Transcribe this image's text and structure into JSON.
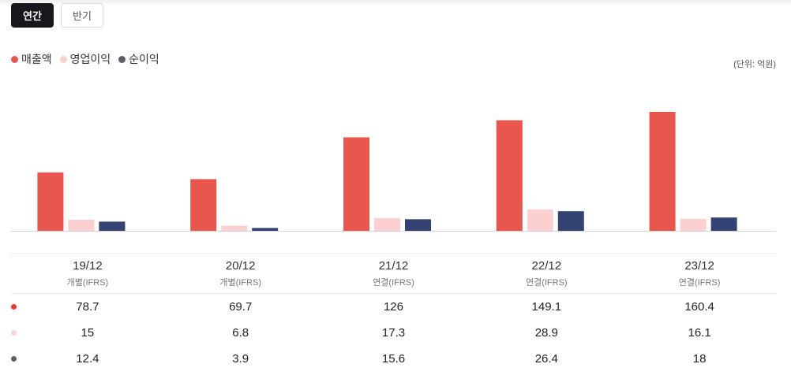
{
  "tabs": [
    {
      "label": "연간",
      "active": true
    },
    {
      "label": "반기",
      "active": false
    }
  ],
  "legend": [
    {
      "label": "매출액",
      "color": "#e8564d"
    },
    {
      "label": "영업이익",
      "color": "#fccfd1"
    },
    {
      "label": "순이익",
      "color": "#5f5f66"
    }
  ],
  "unit_label": "(단위: 억원)",
  "chart_data": {
    "type": "bar",
    "categories": [
      "19/12",
      "20/12",
      "21/12",
      "22/12",
      "23/12"
    ],
    "category_sublabels": [
      "개별(IFRS)",
      "개별(IFRS)",
      "연결(IFRS)",
      "연결(IFRS)",
      "연결(IFRS)"
    ],
    "series": [
      {
        "name": "매출액",
        "color": "#e8564d",
        "values": [
          78.7,
          69.7,
          126,
          149.1,
          160.4
        ],
        "labels": [
          "78.7",
          "69.7",
          "126",
          "149.1",
          "160.4"
        ]
      },
      {
        "name": "영업이익",
        "color": "#fccfd1",
        "values": [
          15,
          6.8,
          17.3,
          28.9,
          16.1
        ],
        "labels": [
          "15",
          "6.8",
          "17.3",
          "28.9",
          "16.1"
        ]
      },
      {
        "name": "순이익",
        "color": "#354374",
        "values": [
          12.4,
          3.9,
          15.6,
          26.4,
          18
        ],
        "labels": [
          "12.4",
          "3.9",
          "15.6",
          "26.4",
          "18"
        ]
      }
    ],
    "ylim": [
      0,
      160.4
    ],
    "grid": false
  },
  "row_markers": [
    "#e53c32",
    "#fcd3d5",
    "#5f5f66"
  ]
}
